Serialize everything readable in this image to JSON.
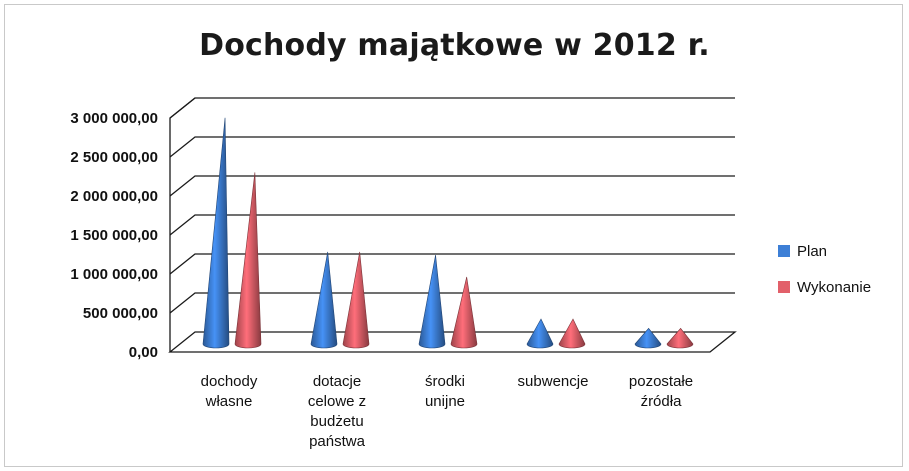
{
  "chart_data": {
    "type": "bar",
    "title": "Dochody majątkowe w 2012 r.",
    "categories": [
      [
        "dochody",
        "własne"
      ],
      [
        "dotacje",
        "celowe z",
        "budżetu",
        "państwa"
      ],
      [
        "środki",
        "unijne"
      ],
      [
        "subwencje"
      ],
      [
        "pozostałe",
        "źródła"
      ]
    ],
    "series": [
      {
        "name": "Plan",
        "color": "#3d7fd6",
        "values": [
          2900000,
          1180000,
          1140000,
          320000,
          200000
        ]
      },
      {
        "name": "Wykonanie",
        "color": "#e2606a",
        "values": [
          2200000,
          1180000,
          860000,
          320000,
          200000
        ]
      }
    ],
    "ylim": [
      0,
      3000000
    ],
    "yticks": [
      "0,00",
      "500 000,00",
      "1 000 000,00",
      "1 500 000,00",
      "2 000 000,00",
      "2 500 000,00",
      "3 000 000,00"
    ],
    "grid": true,
    "legend": "right",
    "xlabel": "",
    "ylabel": ""
  }
}
